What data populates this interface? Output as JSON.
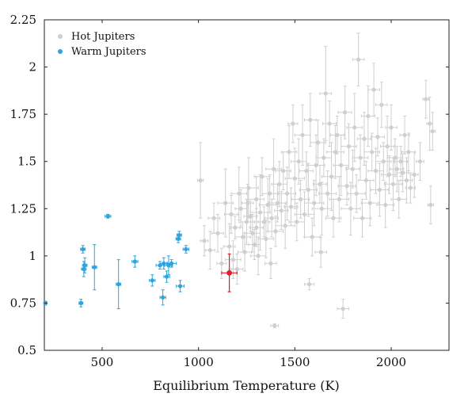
{
  "chart_data": {
    "type": "scatter",
    "title": "",
    "xlabel": "Equilibrium Temperature (K)",
    "ylabel": "",
    "xlim": [
      200,
      2300
    ],
    "ylim": [
      0.5,
      2.25
    ],
    "x_ticks": [
      500,
      1000,
      1500,
      2000
    ],
    "x_tick_labels": [
      "500",
      "1000",
      "1500",
      "2000"
    ],
    "y_ticks": [
      0.5,
      0.75,
      1,
      1.25,
      1.5,
      1.75,
      2,
      2.25
    ],
    "y_tick_labels": [
      "0.5",
      "0.75",
      "1",
      "1.25",
      "1.5",
      "1.75",
      "2",
      "2.25"
    ],
    "grid": false,
    "legend_position": "top-left",
    "colors": {
      "hot": "#cfcfcf",
      "warm": "#2ea3dc",
      "highlight": "#e0202a",
      "axis": "#222222"
    },
    "series": [
      {
        "name": "Hot Jupiters",
        "color": "#cfcfcf",
        "points": [
          [
            1010,
            1.4,
            0.2,
            15,
            15
          ],
          [
            1030,
            1.08,
            0.08,
            20,
            20
          ],
          [
            1060,
            1.03,
            0.1,
            25,
            25
          ],
          [
            1080,
            1.2,
            0.08,
            30,
            30
          ],
          [
            1100,
            1.12,
            0.1,
            30,
            30
          ],
          [
            1120,
            0.96,
            0.08,
            25,
            25
          ],
          [
            1140,
            1.28,
            0.18,
            40,
            40
          ],
          [
            1160,
            1.05,
            0.12,
            30,
            30
          ],
          [
            1170,
            1.22,
            0.1,
            35,
            35
          ],
          [
            1180,
            0.98,
            0.1,
            40,
            40
          ],
          [
            1190,
            1.15,
            0.06,
            25,
            25
          ],
          [
            1200,
            0.93,
            0.08,
            30,
            30
          ],
          [
            1210,
            1.33,
            0.14,
            40,
            40
          ],
          [
            1220,
            1.25,
            0.1,
            30,
            30
          ],
          [
            1230,
            1.1,
            0.08,
            40,
            40
          ],
          [
            1240,
            1.02,
            0.1,
            35,
            35
          ],
          [
            1250,
            1.18,
            0.12,
            40,
            40
          ],
          [
            1255,
            1.28,
            0.1,
            30,
            30
          ],
          [
            1260,
            1.36,
            0.16,
            50,
            50
          ],
          [
            1270,
            1.21,
            0.08,
            35,
            35
          ],
          [
            1280,
            1.12,
            0.1,
            40,
            40
          ],
          [
            1290,
            1.06,
            0.08,
            30,
            30
          ],
          [
            1300,
            1.3,
            0.12,
            40,
            40
          ],
          [
            1300,
            1.15,
            0.1,
            35,
            35
          ],
          [
            1310,
            1.0,
            0.1,
            40,
            40
          ],
          [
            1320,
            1.23,
            0.2,
            50,
            50
          ],
          [
            1330,
            1.42,
            0.1,
            40,
            40
          ],
          [
            1340,
            1.18,
            0.08,
            30,
            30
          ],
          [
            1350,
            1.09,
            0.1,
            40,
            40
          ],
          [
            1360,
            1.27,
            0.14,
            45,
            45
          ],
          [
            1370,
            1.33,
            0.1,
            40,
            40
          ],
          [
            1375,
            0.96,
            0.08,
            30,
            30
          ],
          [
            1380,
            1.2,
            0.1,
            35,
            35
          ],
          [
            1390,
            1.46,
            0.16,
            40,
            40
          ],
          [
            1395,
            0.63,
            0.01,
            20,
            20
          ],
          [
            1400,
            1.13,
            0.08,
            40,
            40
          ],
          [
            1410,
            1.28,
            0.1,
            45,
            45
          ],
          [
            1420,
            1.38,
            0.12,
            40,
            40
          ],
          [
            1430,
            1.24,
            0.1,
            35,
            35
          ],
          [
            1440,
            1.45,
            0.1,
            40,
            40
          ],
          [
            1450,
            1.16,
            0.12,
            50,
            50
          ],
          [
            1460,
            1.33,
            0.14,
            45,
            45
          ],
          [
            1470,
            1.55,
            0.14,
            40,
            40
          ],
          [
            1480,
            1.26,
            0.1,
            35,
            35
          ],
          [
            1490,
            1.7,
            0.1,
            25,
            25
          ],
          [
            1500,
            1.41,
            0.16,
            50,
            50
          ],
          [
            1510,
            1.18,
            0.1,
            40,
            40
          ],
          [
            1520,
            1.5,
            0.12,
            40,
            40
          ],
          [
            1530,
            1.3,
            0.1,
            45,
            45
          ],
          [
            1540,
            1.64,
            0.16,
            40,
            40
          ],
          [
            1550,
            1.22,
            0.12,
            50,
            50
          ],
          [
            1560,
            1.45,
            0.1,
            35,
            35
          ],
          [
            1570,
            1.35,
            0.14,
            45,
            45
          ],
          [
            1575,
            0.85,
            0.03,
            25,
            25
          ],
          [
            1580,
            1.72,
            0.14,
            30,
            30
          ],
          [
            1590,
            1.1,
            0.1,
            40,
            40
          ],
          [
            1600,
            1.28,
            0.12,
            50,
            50
          ],
          [
            1610,
            1.48,
            0.16,
            45,
            45
          ],
          [
            1620,
            1.6,
            0.12,
            40,
            40
          ],
          [
            1630,
            1.38,
            0.1,
            35,
            35
          ],
          [
            1635,
            1.02,
            0.08,
            30,
            30
          ],
          [
            1640,
            1.25,
            0.14,
            50,
            50
          ],
          [
            1650,
            1.52,
            0.1,
            40,
            40
          ],
          [
            1660,
            1.86,
            0.25,
            30,
            30
          ],
          [
            1670,
            1.33,
            0.12,
            45,
            45
          ],
          [
            1680,
            1.7,
            0.12,
            35,
            35
          ],
          [
            1690,
            1.42,
            0.18,
            50,
            50
          ],
          [
            1700,
            1.2,
            0.1,
            40,
            40
          ],
          [
            1710,
            1.55,
            0.14,
            45,
            45
          ],
          [
            1720,
            1.64,
            0.1,
            35,
            35
          ],
          [
            1730,
            1.3,
            0.12,
            50,
            50
          ],
          [
            1740,
            1.48,
            0.16,
            40,
            40
          ],
          [
            1750,
            0.72,
            0.05,
            30,
            30
          ],
          [
            1760,
            1.76,
            0.14,
            35,
            35
          ],
          [
            1770,
            1.37,
            0.1,
            45,
            45
          ],
          [
            1780,
            1.58,
            0.12,
            40,
            40
          ],
          [
            1790,
            1.25,
            0.14,
            50,
            50
          ],
          [
            1800,
            1.46,
            0.1,
            35,
            35
          ],
          [
            1810,
            1.68,
            0.18,
            40,
            40
          ],
          [
            1820,
            1.33,
            0.1,
            45,
            45
          ],
          [
            1830,
            2.04,
            0.14,
            30,
            30
          ],
          [
            1840,
            1.52,
            0.12,
            40,
            40
          ],
          [
            1850,
            1.2,
            0.1,
            45,
            45
          ],
          [
            1860,
            1.62,
            0.14,
            35,
            35
          ],
          [
            1870,
            1.4,
            0.1,
            40,
            40
          ],
          [
            1880,
            1.74,
            0.16,
            35,
            35
          ],
          [
            1890,
            1.28,
            0.12,
            45,
            45
          ],
          [
            1900,
            1.55,
            0.1,
            40,
            40
          ],
          [
            1910,
            1.88,
            0.14,
            30,
            30
          ],
          [
            1920,
            1.45,
            0.12,
            40,
            40
          ],
          [
            1930,
            1.63,
            0.1,
            35,
            35
          ],
          [
            1940,
            1.35,
            0.14,
            45,
            45
          ],
          [
            1950,
            1.8,
            0.12,
            30,
            30
          ],
          [
            1960,
            1.5,
            0.1,
            40,
            40
          ],
          [
            1970,
            1.27,
            0.12,
            45,
            45
          ],
          [
            1980,
            1.58,
            0.16,
            35,
            35
          ],
          [
            1990,
            1.43,
            0.1,
            40,
            40
          ],
          [
            2000,
            1.68,
            0.12,
            30,
            30
          ],
          [
            2010,
            1.38,
            0.14,
            45,
            45
          ],
          [
            2020,
            1.52,
            0.1,
            40,
            40
          ],
          [
            2030,
            1.46,
            0.12,
            35,
            35
          ],
          [
            2040,
            1.3,
            0.1,
            40,
            40
          ],
          [
            2050,
            1.5,
            0.08,
            35,
            35
          ],
          [
            2060,
            1.44,
            0.1,
            30,
            30
          ],
          [
            2070,
            1.64,
            0.1,
            25,
            25
          ],
          [
            2080,
            1.4,
            0.12,
            30,
            30
          ],
          [
            2090,
            1.55,
            0.1,
            35,
            35
          ],
          [
            2100,
            1.36,
            0.08,
            25,
            25
          ],
          [
            2120,
            1.43,
            0.12,
            20,
            20
          ],
          [
            2150,
            1.5,
            0.1,
            20,
            20
          ],
          [
            2180,
            1.83,
            0.1,
            15,
            15
          ],
          [
            2200,
            1.7,
            0.14,
            15,
            15
          ],
          [
            2205,
            1.27,
            0.1,
            15,
            15
          ],
          [
            2215,
            1.66,
            0.1,
            15,
            15
          ]
        ]
      },
      {
        "name": "Warm Jupiters",
        "color": "#2ea3dc",
        "points": [
          [
            205,
            0.75,
            0.01,
            8,
            8
          ],
          [
            390,
            0.75,
            0.02,
            10,
            10
          ],
          [
            400,
            1.035,
            0.02,
            12,
            12
          ],
          [
            405,
            0.93,
            0.04,
            12,
            12
          ],
          [
            410,
            0.95,
            0.04,
            12,
            12
          ],
          [
            460,
            0.94,
            0.12,
            12,
            12
          ],
          [
            530,
            1.21,
            0.01,
            15,
            15
          ],
          [
            585,
            0.85,
            0.13,
            12,
            12
          ],
          [
            670,
            0.97,
            0.03,
            15,
            15
          ],
          [
            760,
            0.87,
            0.03,
            15,
            15
          ],
          [
            800,
            0.95,
            0.02,
            20,
            20
          ],
          [
            815,
            0.78,
            0.04,
            15,
            15
          ],
          [
            820,
            0.96,
            0.03,
            20,
            20
          ],
          [
            835,
            0.89,
            0.03,
            15,
            15
          ],
          [
            845,
            0.95,
            0.05,
            20,
            20
          ],
          [
            860,
            0.96,
            0.02,
            25,
            25
          ],
          [
            895,
            1.09,
            0.02,
            12,
            12
          ],
          [
            900,
            1.11,
            0.02,
            12,
            12
          ],
          [
            905,
            0.84,
            0.03,
            20,
            20
          ],
          [
            935,
            1.035,
            0.02,
            15,
            15
          ]
        ]
      },
      {
        "name": "",
        "color": "#e0202a",
        "points": [
          [
            1160,
            0.91,
            0.1,
            40,
            40
          ]
        ]
      }
    ]
  }
}
